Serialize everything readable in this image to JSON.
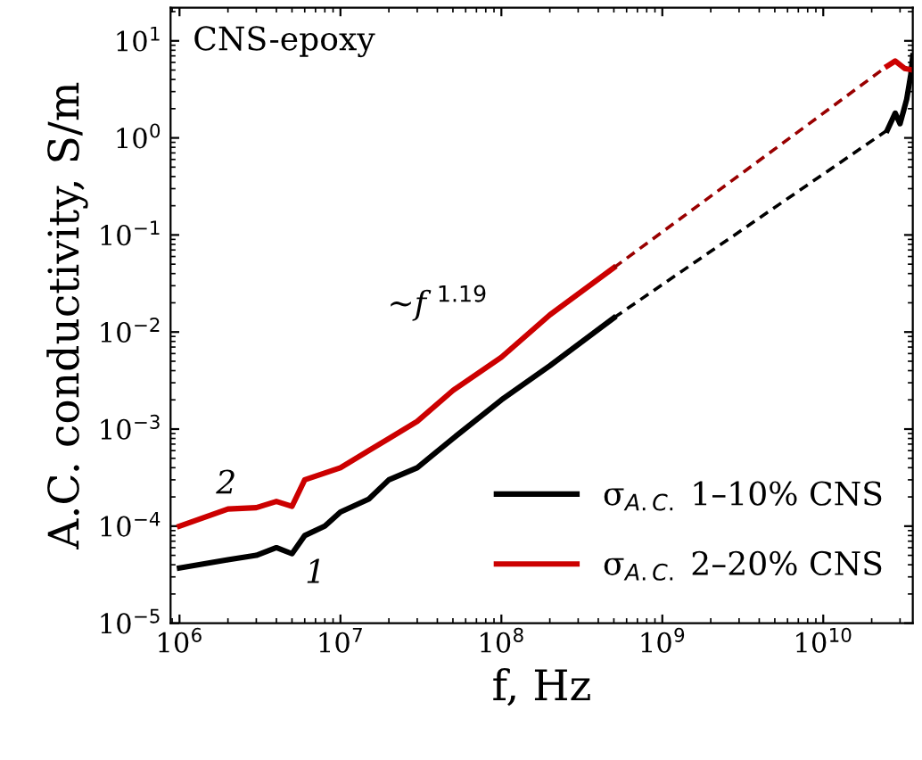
{
  "chart_data": {
    "type": "line",
    "xlabel": "f, Hz",
    "ylabel": "A.C. conductivity, S/m",
    "log": "xy",
    "grid": false,
    "legend": "bottom right",
    "xlim": [
      880000,
      36000000000
    ],
    "ylim": [
      1e-05,
      22
    ],
    "xticks": [
      {
        "value": 1000000,
        "label": "10$^{6}$"
      },
      {
        "value": 10000000,
        "label": "10$^{7}$"
      },
      {
        "value": 100000000,
        "label": "10$^{8}$"
      },
      {
        "value": 1000000000,
        "label": "10$^{9}$"
      },
      {
        "value": 10000000000,
        "label": "10$^{10}$"
      }
    ],
    "yticks": [
      {
        "value": 1e-05,
        "label": "10$^{−5}$"
      },
      {
        "value": 0.0001,
        "label": "10$^{−4}$"
      },
      {
        "value": 0.001,
        "label": "10$^{−3}$"
      },
      {
        "value": 0.01,
        "label": "10$^{−2}$"
      },
      {
        "value": 0.1,
        "label": "10$^{−1}$"
      },
      {
        "value": 1,
        "label": "10$^{0}$"
      },
      {
        "value": 10,
        "label": "10$^{1}$"
      }
    ],
    "series": [
      {
        "name": "σ$_{A.C.}$ 1–10% CNS",
        "color": "#000000",
        "line_style": "solid",
        "x": [
          1000000,
          2000000,
          3000000,
          4000000,
          5000000,
          6000000,
          8000000,
          10000000,
          15000000,
          20000000,
          30000000,
          50000000,
          100000000,
          200000000,
          500000000
        ],
        "values": [
          3.7e-05,
          4.5e-05,
          5e-05,
          6e-05,
          5.2e-05,
          8e-05,
          0.0001,
          0.00014,
          0.00019,
          0.0003,
          0.0004,
          0.0008,
          0.002,
          0.0045,
          0.014
        ]
      },
      {
        "name": "σ$_{A.C.}$ 2–20% CNS",
        "color": "#cc0000",
        "line_style": "solid",
        "x": [
          1000000,
          2000000,
          3000000,
          4000000,
          5000000,
          6000000,
          10000000,
          15000000,
          20000000,
          30000000,
          50000000,
          100000000,
          200000000,
          500000000
        ],
        "values": [
          0.0001,
          0.00015,
          0.000155,
          0.00018,
          0.00016,
          0.0003,
          0.0004,
          0.0006,
          0.0008,
          0.0012,
          0.0025,
          0.0055,
          0.015,
          0.046
        ]
      },
      {
        "color": "#000000",
        "line_style": "dashed",
        "x": [
          500000000,
          25000000000
        ],
        "values": [
          0.014,
          1.2
        ]
      },
      {
        "color": "#990000",
        "line_style": "dashed",
        "x": [
          500000000,
          25000000000
        ],
        "values": [
          0.046,
          5.5
        ]
      },
      {
        "color": "#000000",
        "line_style": "solid",
        "x": [
          25000000000,
          28000000000,
          30000000000,
          33000000000,
          35000000000,
          36000000000
        ],
        "values": [
          1.2,
          1.8,
          1.4,
          2.5,
          4.5,
          7
        ]
      },
      {
        "color": "#cc0000",
        "line_style": "solid",
        "x": [
          25000000000,
          28000000000,
          32000000000,
          36000000000
        ],
        "values": [
          5.5,
          6.2,
          5.2,
          5
        ]
      }
    ],
    "annotations": [
      "CNS-epoxy",
      "~f $^{1.19}$",
      "2",
      "1"
    ]
  }
}
